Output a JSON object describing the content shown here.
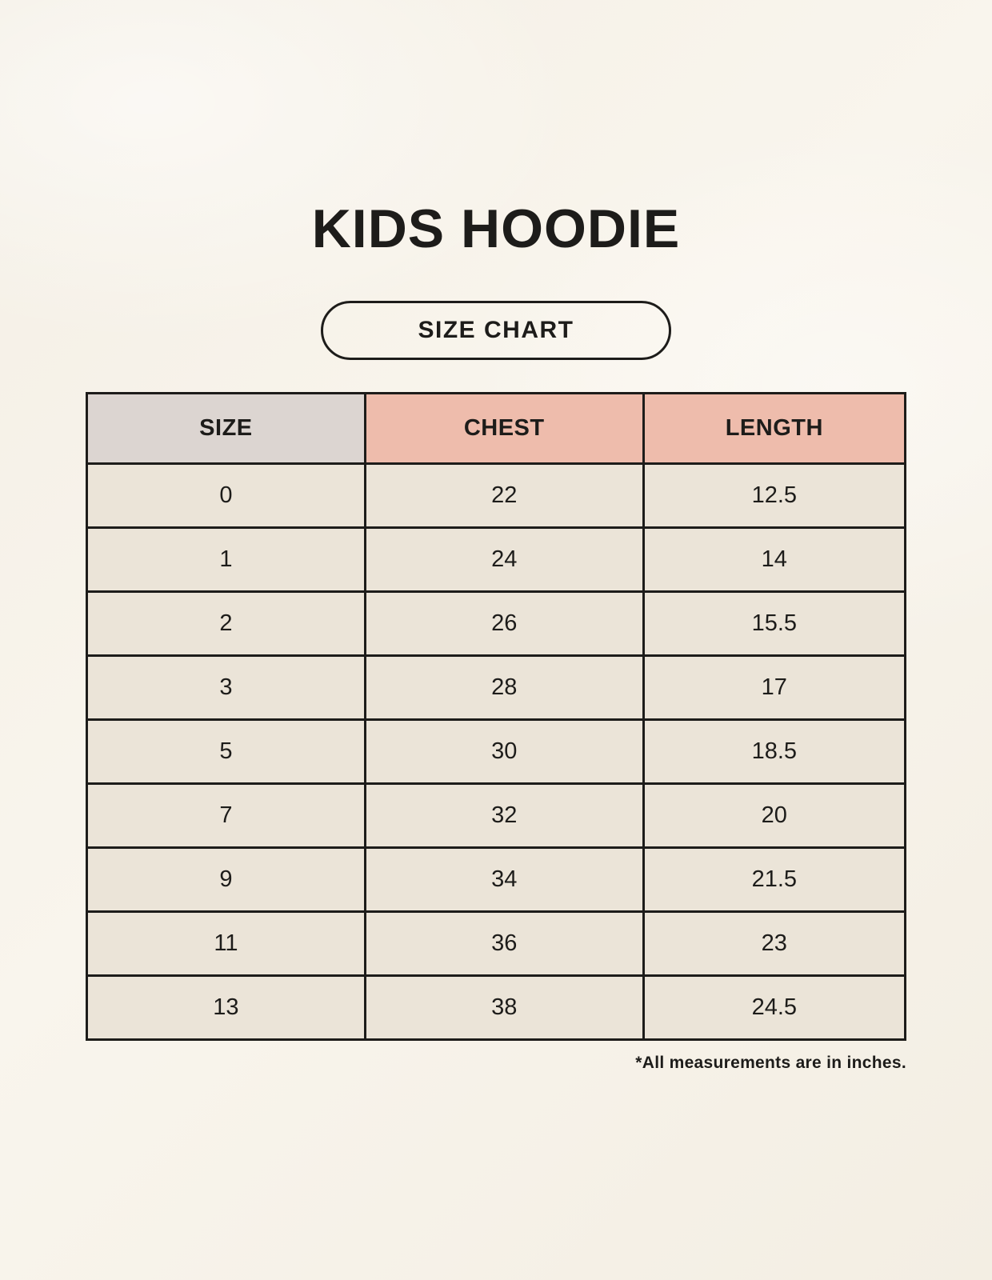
{
  "page": {
    "title": "KIDS HOODIE",
    "badge_label": "SIZE CHART",
    "footnote": "*All measurements are in inches."
  },
  "colors": {
    "page_background": "#f6f1e8",
    "header_size_bg": "#dcd5d1",
    "header_measure_bg": "#eebcac",
    "size_column_bg": "#dcd5d1",
    "data_cell_bg": "#ebe4d8",
    "border": "#1d1c1a",
    "text": "#1d1c1a"
  },
  "chart_data": {
    "type": "table",
    "title": "KIDS HOODIE",
    "subtitle": "SIZE CHART",
    "columns": [
      "SIZE",
      "CHEST",
      "LENGTH"
    ],
    "rows": [
      [
        "0",
        "22",
        "12.5"
      ],
      [
        "1",
        "24",
        "14"
      ],
      [
        "2",
        "26",
        "15.5"
      ],
      [
        "3",
        "28",
        "17"
      ],
      [
        "5",
        "30",
        "18.5"
      ],
      [
        "7",
        "32",
        "20"
      ],
      [
        "9",
        "34",
        "21.5"
      ],
      [
        "11",
        "36",
        "23"
      ],
      [
        "13",
        "38",
        "24.5"
      ]
    ],
    "unit_note": "*All measurements are in inches."
  }
}
